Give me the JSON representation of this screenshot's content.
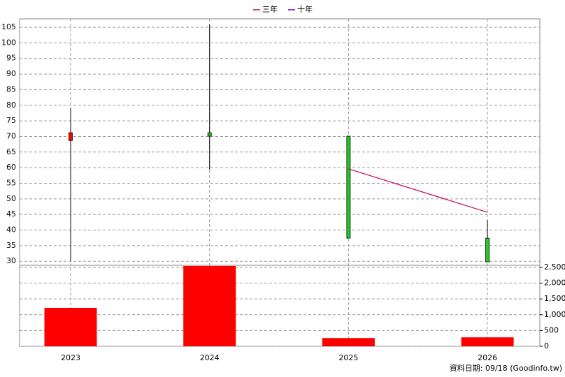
{
  "chart_data": {
    "type": "candlestick",
    "categories": [
      "2023",
      "2024",
      "2025",
      "2026"
    ],
    "open": [
      68.7,
      71.2,
      70.1,
      37.4
    ],
    "high": [
      79,
      105.9,
      70.1,
      43.2
    ],
    "low": [
      30,
      59.3,
      37.4,
      29.8
    ],
    "close": [
      71.2,
      70.1,
      37.4,
      29.8
    ],
    "up_color": "#ff0000",
    "down_color": "#22cc22",
    "lines": [
      {
        "name": "三年",
        "color": "#cc0066",
        "values": [
          null,
          null,
          59.6,
          45.7
        ]
      },
      {
        "name": "十年",
        "color": "#6600cc",
        "values": [
          null,
          null,
          null,
          null
        ]
      }
    ],
    "volume": {
      "values": [
        1217,
        2543,
        261,
        283
      ],
      "color": "#ff0000"
    },
    "ylim": [
      28.7,
      107.7
    ],
    "yticks": [
      30,
      35,
      40,
      45,
      50,
      55,
      60,
      65,
      70,
      75,
      80,
      85,
      90,
      95,
      100,
      105
    ],
    "y2lim": [
      0,
      2565
    ],
    "y2ticks": [
      0,
      500,
      {
        "value": 1000,
        "label": "1,000"
      },
      {
        "value": 1500,
        "label": "1,500"
      },
      {
        "value": 2000,
        "label": "2,000"
      },
      {
        "value": 2500,
        "label": "2,500"
      }
    ],
    "grid": true,
    "source": "資料日期: 09/18  (Goodinfo.tw)"
  }
}
